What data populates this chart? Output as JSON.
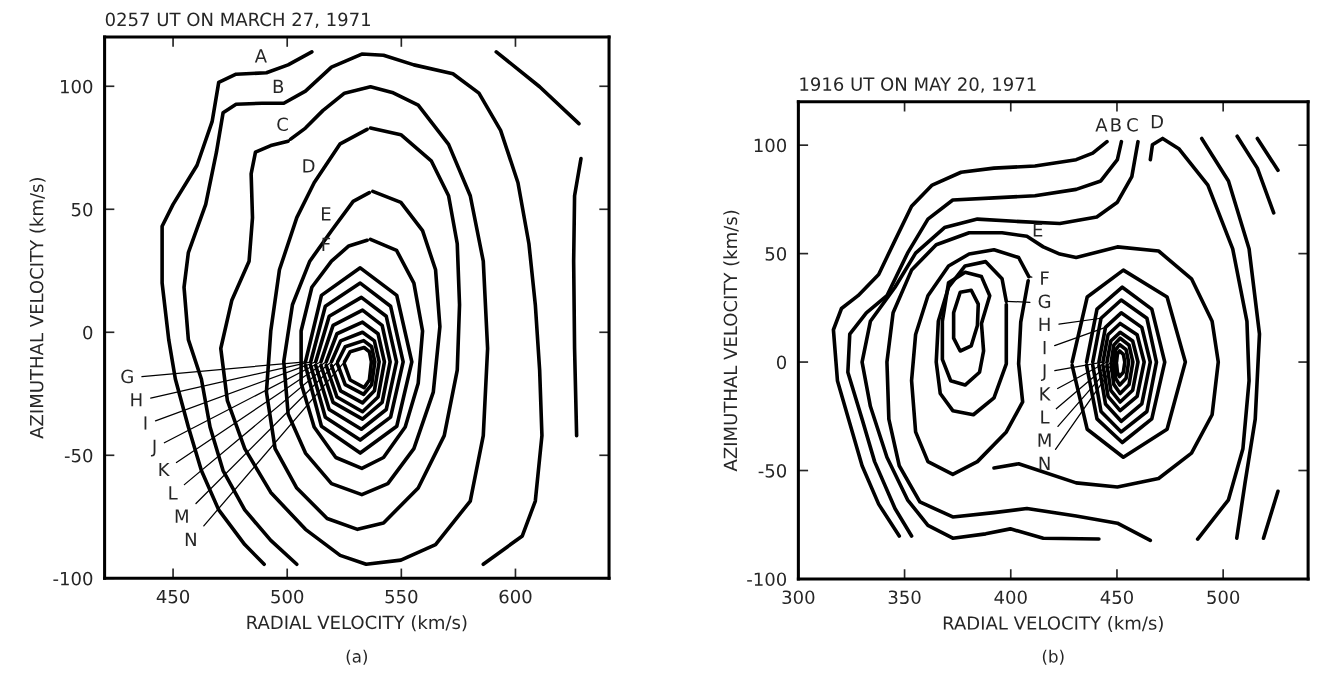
{
  "chart_data": [
    {
      "type": "line",
      "title": "0257 UT ON MARCH 27, 1971",
      "xlabel": "RADIAL VELOCITY (km/s)",
      "ylabel": "AZIMUTHAL VELOCITY (km/s)",
      "xlim": [
        420,
        641
      ],
      "ylim": [
        -100,
        120
      ],
      "xticks": [
        450,
        500,
        550,
        600
      ],
      "yticks": [
        -100,
        -50,
        0,
        50,
        100
      ],
      "series": [
        {
          "color": "#000000",
          "x": [
            510.8,
            500.4,
            490.9,
            477.6,
            470,
            467.1,
            460.5,
            450,
            445.2,
            445.2,
            448.1,
            451,
            456.7,
            462.4,
            470,
            481.4,
            489.9
          ],
          "values": [
            114,
            108.7,
            105.5,
            104.9,
            101.6,
            85.6,
            67.9,
            52,
            43.1,
            20,
            -3,
            -19,
            -38.5,
            -56.2,
            -72.2,
            -86.3,
            -94.3
          ]
        },
        {
          "color": "#000000",
          "x": [
            504.2,
            492.8,
            481.4,
            471.9,
            466.2,
            462.4,
            456.7,
            454.8,
            456.7,
            464.3,
            469,
            471.9,
            477.6,
            489,
            498.5,
            508,
            519.4,
            532.7,
            542.2,
            555.5,
            572.6,
            584,
            593.5,
            601.1,
            605.9,
            608.7,
            610.6,
            611.6,
            608.7,
            603,
            585.9
          ],
          "values": [
            -94.3,
            -84.6,
            -72.2,
            -56.2,
            -38.5,
            -19,
            -3,
            18.3,
            32.4,
            52,
            73.2,
            89.2,
            92.7,
            93.1,
            93.1,
            98,
            107.8,
            113.1,
            112.6,
            108.7,
            105.1,
            97.2,
            82.1,
            60.8,
            36,
            11.2,
            -15.4,
            -42,
            -68.6,
            -82.8,
            -94.3
          ]
        },
        {
          "color": "#000000",
          "x": [
            500.4,
            492.8,
            486.1,
            484.2,
            484.8,
            483.3,
            475.7,
            470.9,
            473.8,
            481.4,
            492.8,
            508,
            523.2,
            534.6,
            549.8,
            565,
            580.2,
            585.9,
            587.8,
            585.9,
            580.2,
            570.7,
            557.4,
            546,
            536.5,
            525.1,
            515.6,
            508,
            501.5
          ],
          "values": [
            77.7,
            75.9,
            73.2,
            64.4,
            46.6,
            28.9,
            12.9,
            -6.6,
            -27.8,
            -47.3,
            -65.1,
            -80.1,
            -90.7,
            -94.3,
            -92.6,
            -86.3,
            -68.6,
            -42,
            -6.6,
            28.9,
            55.5,
            76.4,
            92.3,
            97.5,
            99.8,
            97.2,
            90.1,
            83,
            78.5
          ]
        },
        {
          "color": "#000000",
          "x": [
            536.5,
            549.8,
            563.1,
            570.7,
            574.5,
            575.5,
            574.5,
            568.8,
            557.4,
            542.2,
            530.8,
            517.5,
            504.2,
            494.7,
            490.9,
            492.8,
            496.6,
            504.2,
            511.8,
            523.2,
            535
          ],
          "values": [
            83,
            80.3,
            69.7,
            55.5,
            36,
            11.2,
            -15.4,
            -42,
            -63.3,
            -77.5,
            -80.1,
            -75.7,
            -63.3,
            -47.3,
            -24.3,
            0.5,
            25.4,
            46.6,
            60.8,
            76.6,
            82.5
          ]
        },
        {
          "color": "#000000",
          "x": [
            537.5,
            549.8,
            559.3,
            565,
            566.9,
            564,
            555.5,
            544.1,
            532.7,
            519.4,
            508,
            500.4,
            498.5,
            502.3,
            509.9,
            519.4,
            528.9,
            536
          ],
          "values": [
            57.3,
            52.8,
            41.3,
            25.4,
            2.3,
            -24.3,
            -47.3,
            -61.5,
            -66,
            -61.5,
            -49.1,
            -33.2,
            -11.9,
            11.2,
            28.9,
            41.3,
            53.2,
            56.8
          ]
        },
        {
          "color": "#000000",
          "x": [
            536.5,
            547.9,
            555.5,
            559.3,
            557.4,
            551.7,
            542.2,
            532.7,
            521.3,
            511.8,
            506.1,
            506.1,
            510.8,
            519.4,
            527,
            535
          ],
          "values": [
            37.8,
            33.3,
            20,
            0.5,
            -20.7,
            -38.5,
            -50.9,
            -55.3,
            -50.9,
            -38.5,
            -20.7,
            0.5,
            18.3,
            28.9,
            35.1,
            37.4
          ]
        },
        {
          "color": "#000000",
          "x": [
            508,
            515,
            532,
            548,
            554.6,
            548,
            532,
            515,
            508
          ],
          "values": [
            -12,
            15,
            26.2,
            15,
            -12,
            -38.2,
            -49.1,
            -38.2,
            -13.5
          ]
        },
        {
          "color": "#000000",
          "x": [
            510.3,
            516.7,
            532,
            545.3,
            550.8,
            545.3,
            532,
            516.7,
            510.3
          ],
          "values": [
            -12,
            10.6,
            20,
            10.6,
            -12,
            -34.5,
            -43.8,
            -34.5,
            -13.5
          ]
        },
        {
          "color": "#000000",
          "x": [
            512.5,
            518.4,
            532.5,
            543.4,
            547.9,
            543.4,
            532.5,
            518.4,
            512.5
          ],
          "values": [
            -12,
            6.5,
            14.2,
            6.5,
            -12,
            -31.4,
            -39.4,
            -31.4,
            -13.5
          ]
        },
        {
          "color": "#000000",
          "x": [
            514.8,
            520.1,
            533,
            541.6,
            545.1,
            541.6,
            533,
            520.1,
            514.8
          ],
          "values": [
            -12,
            2.8,
            9,
            2.8,
            -12,
            -28.5,
            -35.3,
            -28.5,
            -13.5
          ]
        },
        {
          "color": "#000000",
          "x": [
            517.1,
            521.8,
            533,
            539.8,
            542.6,
            539.8,
            533,
            521.8,
            517.1
          ],
          "values": [
            -12,
            -0.6,
            4.1,
            -0.6,
            -12,
            -26.3,
            -32.3,
            -26.3,
            -13.5
          ]
        },
        {
          "color": "#000000",
          "x": [
            519.4,
            523.4,
            533,
            538.2,
            540.3,
            538.2,
            533,
            523.4,
            519.4
          ],
          "values": [
            -12,
            -3.5,
            0,
            -3.5,
            -12,
            -23.8,
            -28.7,
            -23.8,
            -13.5
          ]
        },
        {
          "color": "#000000",
          "x": [
            522.1,
            525.4,
            533.5,
            537,
            538.4,
            537,
            533.5,
            525.4,
            522.1
          ],
          "values": [
            -12,
            -5.9,
            -3.4,
            -5.9,
            -12,
            -21.3,
            -25.2,
            -21.3,
            -13
          ]
        },
        {
          "color": "#000000",
          "x": [
            525.1,
            527.6,
            533.7,
            536,
            536.9,
            536,
            533.7,
            527.6,
            525.1
          ],
          "values": [
            -12,
            -7.9,
            -6.2,
            -7.9,
            -12,
            -19.4,
            -22.5,
            -19.4,
            -13
          ]
        },
        {
          "color": "#000000",
          "x": [
            591.6,
            610.6,
            627.8
          ],
          "values": [
            114,
            99.8,
            84.8
          ]
        },
        {
          "color": "#000000",
          "x": [
            628.7,
            625.9,
            625.5,
            625.9,
            626.8
          ],
          "values": [
            70.6,
            55.5,
            28.9,
            -6.6,
            -42
          ]
        }
      ],
      "annotations": [
        {
          "text": "A",
          "x": 490.9,
          "y": 105.5
        },
        {
          "text": "B",
          "x": 498.5,
          "y": 93.1
        },
        {
          "text": "C",
          "x": 500.4,
          "y": 77.7
        },
        {
          "text": "D",
          "x": 511.8,
          "y": 60.8
        },
        {
          "text": "E",
          "x": 519.4,
          "y": 41.3
        },
        {
          "text": "F",
          "x": 519.4,
          "y": 28.9
        },
        {
          "text": "G",
          "x": 508,
          "y": -12
        },
        {
          "text": "H",
          "x": 510.3,
          "y": -12
        },
        {
          "text": "I",
          "x": 512.5,
          "y": -12
        },
        {
          "text": "J",
          "x": 514.8,
          "y": -12
        },
        {
          "text": "K",
          "x": 517.1,
          "y": -12
        },
        {
          "text": "L",
          "x": 519.4,
          "y": -12
        },
        {
          "text": "M",
          "x": 522.1,
          "y": -12
        },
        {
          "text": "N",
          "x": 525.1,
          "y": -12
        },
        "(a)"
      ]
    },
    {
      "type": "line",
      "title": "1916 UT ON MAY 20, 1971",
      "xlabel": "RADIAL VELOCITY (km/s)",
      "ylabel": "AZIMUTHAL VELOCITY (km/s)",
      "xlim": [
        300,
        540
      ],
      "ylim": [
        -100,
        120
      ],
      "xticks": [
        300,
        350,
        400,
        450,
        500
      ],
      "yticks": [
        -100,
        -50,
        0,
        50,
        100
      ],
      "series": [
        {
          "color": "#000000",
          "x": [
            445.3,
            438.6,
            430.8,
            411.4,
            392.1,
            376.6,
            363,
            353.3,
            345.5,
            337.8,
            328.1,
            320.3,
            316.5,
            318.4,
            324.2,
            330,
            337.8,
            347.5
          ],
          "values": [
            101.6,
            96.3,
            93.3,
            90.4,
            89.4,
            87.5,
            81.6,
            71.8,
            56.1,
            40.4,
            30.6,
            24.7,
            14.9,
            -8.6,
            -28.2,
            -47.8,
            -65.5,
            -80.2
          ]
        },
        {
          "color": "#000000",
          "x": [
            452.1,
            450.2,
            442.4,
            430.8,
            411.4,
            392.1,
            372.7,
            361,
            351.4,
            341.7,
            332,
            324.2,
            323.3,
            330,
            335.9,
            345.5,
            353.3
          ],
          "values": [
            101.6,
            93.3,
            83.5,
            79.6,
            76.7,
            75.7,
            74.7,
            65.9,
            50.2,
            30.6,
            22.7,
            12.9,
            -4.7,
            -26.3,
            -45.9,
            -67.5,
            -80.2
          ]
        },
        {
          "color": "#000000",
          "x": [
            459.9,
            457,
            450.2,
            440.5,
            423.1,
            401.7,
            384.3,
            368.8,
            355.2,
            345.5,
            333.9,
            330,
            333.9,
            341.7,
            351.4,
            361,
            372.7,
            388.2,
            399.8,
            415.3,
            441.5
          ],
          "values": [
            101.6,
            85.5,
            73.7,
            66.9,
            63.9,
            64.9,
            65.9,
            62,
            50.2,
            34.5,
            18.8,
            0,
            -20.4,
            -43.9,
            -63.5,
            -75.3,
            -81.2,
            -79.2,
            -76.9,
            -81.2,
            -81.6
          ]
        },
        {
          "color": "#000000",
          "x": [
            465.7,
            466.7,
            471.5,
            479.3,
            492.8,
            504.5,
            511.2,
            512.2,
            509.3,
            502.5,
            488
          ],
          "values": [
            93.3,
            100.2,
            103.1,
            98.2,
            81.6,
            52.2,
            18.8,
            -8.6,
            -40,
            -63.5,
            -81.6
          ]
        },
        {
          "color": "#000000",
          "x": [
            392.1,
            403.7,
            430.8,
            450.2,
            469.6,
            485.1,
            494.8,
            497.7,
            494.8,
            485.1,
            469.6,
            450.2,
            430.8,
            423.1,
            415.3,
            407.6,
            395.9,
            380.4,
            364.9,
            353.3,
            344.6,
            341.7,
            342.6,
            347.5,
            357.2,
            372.7,
            392.1,
            407.6,
            430.8,
            450.2,
            465.7
          ],
          "values": [
            -48.8,
            -46.9,
            -55.7,
            -57.6,
            -53.7,
            -42,
            -24.3,
            0,
            18.8,
            38.4,
            51.2,
            53.1,
            48.2,
            49.8,
            53.1,
            58,
            59.6,
            59.6,
            54.1,
            42.4,
            22.7,
            0,
            -26.3,
            -47.8,
            -64.5,
            -71.4,
            -69.4,
            -67.5,
            -71,
            -74.3,
            -82.2
          ]
        },
        {
          "color": "#000000",
          "x": [
            408.5,
            403.7,
            392.1,
            380.4,
            370.7,
            361,
            355.2,
            353.3,
            355.2,
            361,
            372.7,
            384.3,
            397.9,
            405.6,
            403.7,
            404.7,
            408.2
          ],
          "values": [
            39.4,
            48.2,
            51.8,
            49.8,
            44.3,
            30.6,
            12.7,
            -8.6,
            -32.2,
            -45.9,
            -51.8,
            -45.9,
            -32.2,
            -18.4,
            -0.8,
            18.4,
            37.5
          ]
        },
        {
          "color": "#000000",
          "x": [
            397.9,
            395.9,
            388.2,
            378.5,
            370.7,
            365.9,
            364.9,
            366.8,
            372.7,
            382.4,
            392.1,
            397.9,
            397.9,
            397.9
          ],
          "values": [
            28,
            38.4,
            46.3,
            44.3,
            34.5,
            18.8,
            0,
            -14.5,
            -22.4,
            -24.3,
            -16.5,
            -0.8,
            14.9,
            26.5
          ]
        },
        {
          "color": "#000000",
          "x": [
            386.2,
            390.1,
            386.2,
            378.5,
            370.7,
            367.8,
            367.8,
            371.7,
            378.5,
            385.3,
            387.2,
            386.2,
            386.6
          ],
          "values": [
            17.8,
            30.6,
            39.4,
            41.4,
            36.5,
            18.8,
            1.2,
            -8.6,
            -10.6,
            -4.7,
            5.1,
            17.8,
            19
          ]
        },
        {
          "color": "#000000",
          "x": [
            381.4,
            384.3,
            384.7,
            381.4,
            376.2,
            373.1,
            373.1,
            376.2,
            381.4,
            381.7
          ],
          "values": [
            7.5,
            16.9,
            26.7,
            33.1,
            32.2,
            22.7,
            11,
            5.1,
            7.5,
            8.5
          ]
        },
        {
          "color": "#000000",
          "x": [
            428.9,
            436,
            453,
            473.6,
            482.2,
            473.6,
            453,
            436,
            428.9
          ],
          "values": [
            0,
            30,
            42.4,
            30,
            0,
            -31,
            -43.9,
            -31,
            -1.5
          ]
        },
        {
          "color": "#000000",
          "x": [
            435.7,
            440.6,
            452.5,
            466.4,
            472.5,
            466.4,
            452.5,
            440.6,
            435.7
          ],
          "values": [
            0,
            24.4,
            34.5,
            24.4,
            0,
            -26.2,
            -37.1,
            -26.2,
            -1.5
          ]
        },
        {
          "color": "#000000",
          "x": [
            438.6,
            442.5,
            452,
            464.1,
            468.6,
            464.1,
            452,
            442.5,
            438.6
          ],
          "values": [
            0,
            20.2,
            28.6,
            20.2,
            0,
            -22.8,
            -32.2,
            -22.8,
            -1.5
          ]
        },
        {
          "color": "#000000",
          "x": [
            441.5,
            444.6,
            452,
            461.7,
            465.7,
            461.7,
            452,
            444.6,
            441.5
          ],
          "values": [
            0,
            16,
            22.7,
            16,
            0,
            -19.3,
            -27.3,
            -19.3,
            -1.5
          ]
        },
        {
          "color": "#000000",
          "x": [
            443.4,
            445.8,
            451.5,
            459.5,
            462.8,
            459.5,
            451.5,
            445.8,
            443.4
          ],
          "values": [
            0,
            12.6,
            17.8,
            12.6,
            0,
            -15.8,
            -22.4,
            -15.8,
            -1.5
          ]
        },
        {
          "color": "#000000",
          "x": [
            445.3,
            447.1,
            451.5,
            457.4,
            459.9,
            457.4,
            451.5,
            447.1,
            445.3
          ],
          "values": [
            0,
            9.7,
            13.7,
            9.7,
            0,
            -13,
            -18.4,
            -13,
            -1.5
          ]
        },
        {
          "color": "#000000",
          "x": [
            447.3,
            448.5,
            451.5,
            455.7,
            457.5,
            455.7,
            451.5,
            448.5,
            447.3
          ],
          "values": [
            0,
            7.8,
            11,
            7.8,
            0,
            -10.3,
            -14.5,
            -10.3,
            -1.2
          ]
        },
        {
          "color": "#000000",
          "x": [
            448.6,
            449.4,
            451.3,
            454.3,
            455.5,
            454.3,
            451.3,
            449.4,
            448.6
          ],
          "values": [
            0,
            5.7,
            8,
            5.7,
            0,
            -7.5,
            -10.6,
            -7.5,
            -1
          ]
        },
        {
          "color": "#000000",
          "x": [
            449.8,
            450.2,
            451.2,
            453,
            453.7,
            453,
            451.2,
            450.2,
            449.8
          ],
          "values": [
            0,
            3.6,
            5.1,
            3.6,
            0,
            -4.7,
            -6.7,
            -4.7,
            -0.8
          ]
        },
        {
          "color": "#000000",
          "x": [
            489.9,
            502.5,
            512.2,
            517.1,
            515.1,
            510.3,
            506.4
          ],
          "values": [
            103.1,
            83.5,
            52.2,
            12.9,
            -26.3,
            -55.7,
            -81.2
          ]
        },
        {
          "color": "#000000",
          "x": [
            506.6,
            516.1,
            523.8
          ],
          "values": [
            104.1,
            89.4,
            68.8
          ]
        },
        {
          "color": "#000000",
          "x": [
            516.1,
            525.8
          ],
          "values": [
            103.1,
            88.4
          ]
        },
        {
          "color": "#000000",
          "x": [
            519,
            525.8
          ],
          "values": [
            -81.2,
            -59.6
          ]
        }
      ],
      "annotations": [
        {
          "text": "A",
          "x": 445.3,
          "y": 101.6
        },
        {
          "text": "B",
          "x": 452.1,
          "y": 101.6
        },
        {
          "text": "C",
          "x": 459.9,
          "y": 101.6
        },
        {
          "text": "D",
          "x": 471.5,
          "y": 103.1
        },
        {
          "text": "E",
          "x": 415.3,
          "y": 53.1
        },
        {
          "text": "F",
          "x": 408.5,
          "y": 39.4
        },
        {
          "text": "G",
          "x": 397.9,
          "y": 28
        },
        {
          "text": "H",
          "x": 442.5,
          "y": 20.2
        },
        {
          "text": "I",
          "x": 444.6,
          "y": 16
        },
        {
          "text": "J",
          "x": 443.4,
          "y": 0
        },
        {
          "text": "K",
          "x": 445.3,
          "y": 0
        },
        {
          "text": "L",
          "x": 447.3,
          "y": 0
        },
        {
          "text": "M",
          "x": 448.6,
          "y": 0
        },
        {
          "text": "N",
          "x": 449.8,
          "y": 0
        },
        "(b)"
      ]
    }
  ]
}
